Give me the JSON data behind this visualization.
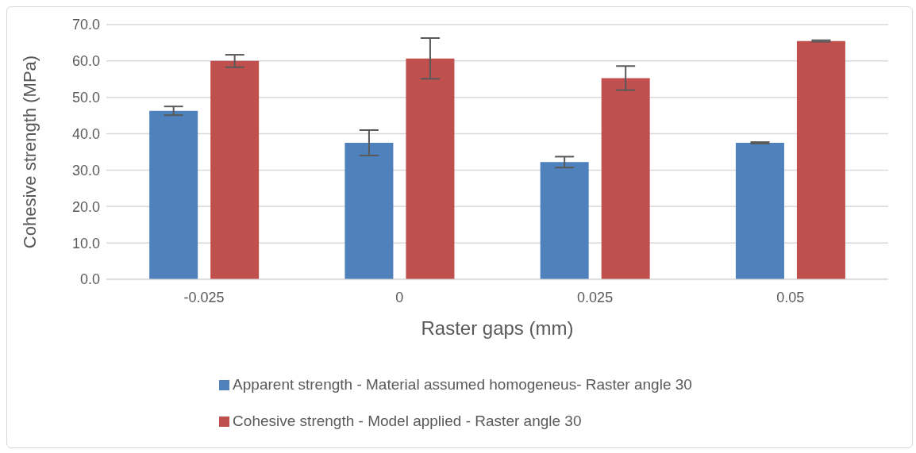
{
  "chart_data": {
    "type": "bar",
    "xlabel": "Raster gaps (mm)",
    "ylabel": "Cohesive strength (MPa)",
    "categories": [
      "-0.025",
      "0",
      "0.025",
      "0.05"
    ],
    "series": [
      {
        "name": "Apparent strength - Material assumed homogeneus- Raster angle 30",
        "color": "#4f81bd",
        "values": [
          46.3,
          37.5,
          32.2,
          37.5
        ],
        "errors": [
          1.2,
          3.5,
          1.5,
          0.2
        ]
      },
      {
        "name": "Cohesive strength - Model applied - Raster angle 30",
        "color": "#c0504d",
        "values": [
          60.0,
          60.7,
          55.3,
          65.5
        ],
        "errors": [
          1.7,
          5.6,
          3.3,
          0.2
        ]
      }
    ],
    "ylim": [
      0,
      70
    ],
    "yticks": [
      {
        "value": 0,
        "label": "0.0"
      },
      {
        "value": 10,
        "label": "10.0"
      },
      {
        "value": 20,
        "label": "20.0"
      },
      {
        "value": 30,
        "label": "30.0"
      },
      {
        "value": 40,
        "label": "40.0"
      },
      {
        "value": 50,
        "label": "50.0"
      },
      {
        "value": 60,
        "label": "60.0"
      },
      {
        "value": 70,
        "label": "70.0"
      }
    ],
    "grid": "y",
    "legend": "bottom"
  }
}
